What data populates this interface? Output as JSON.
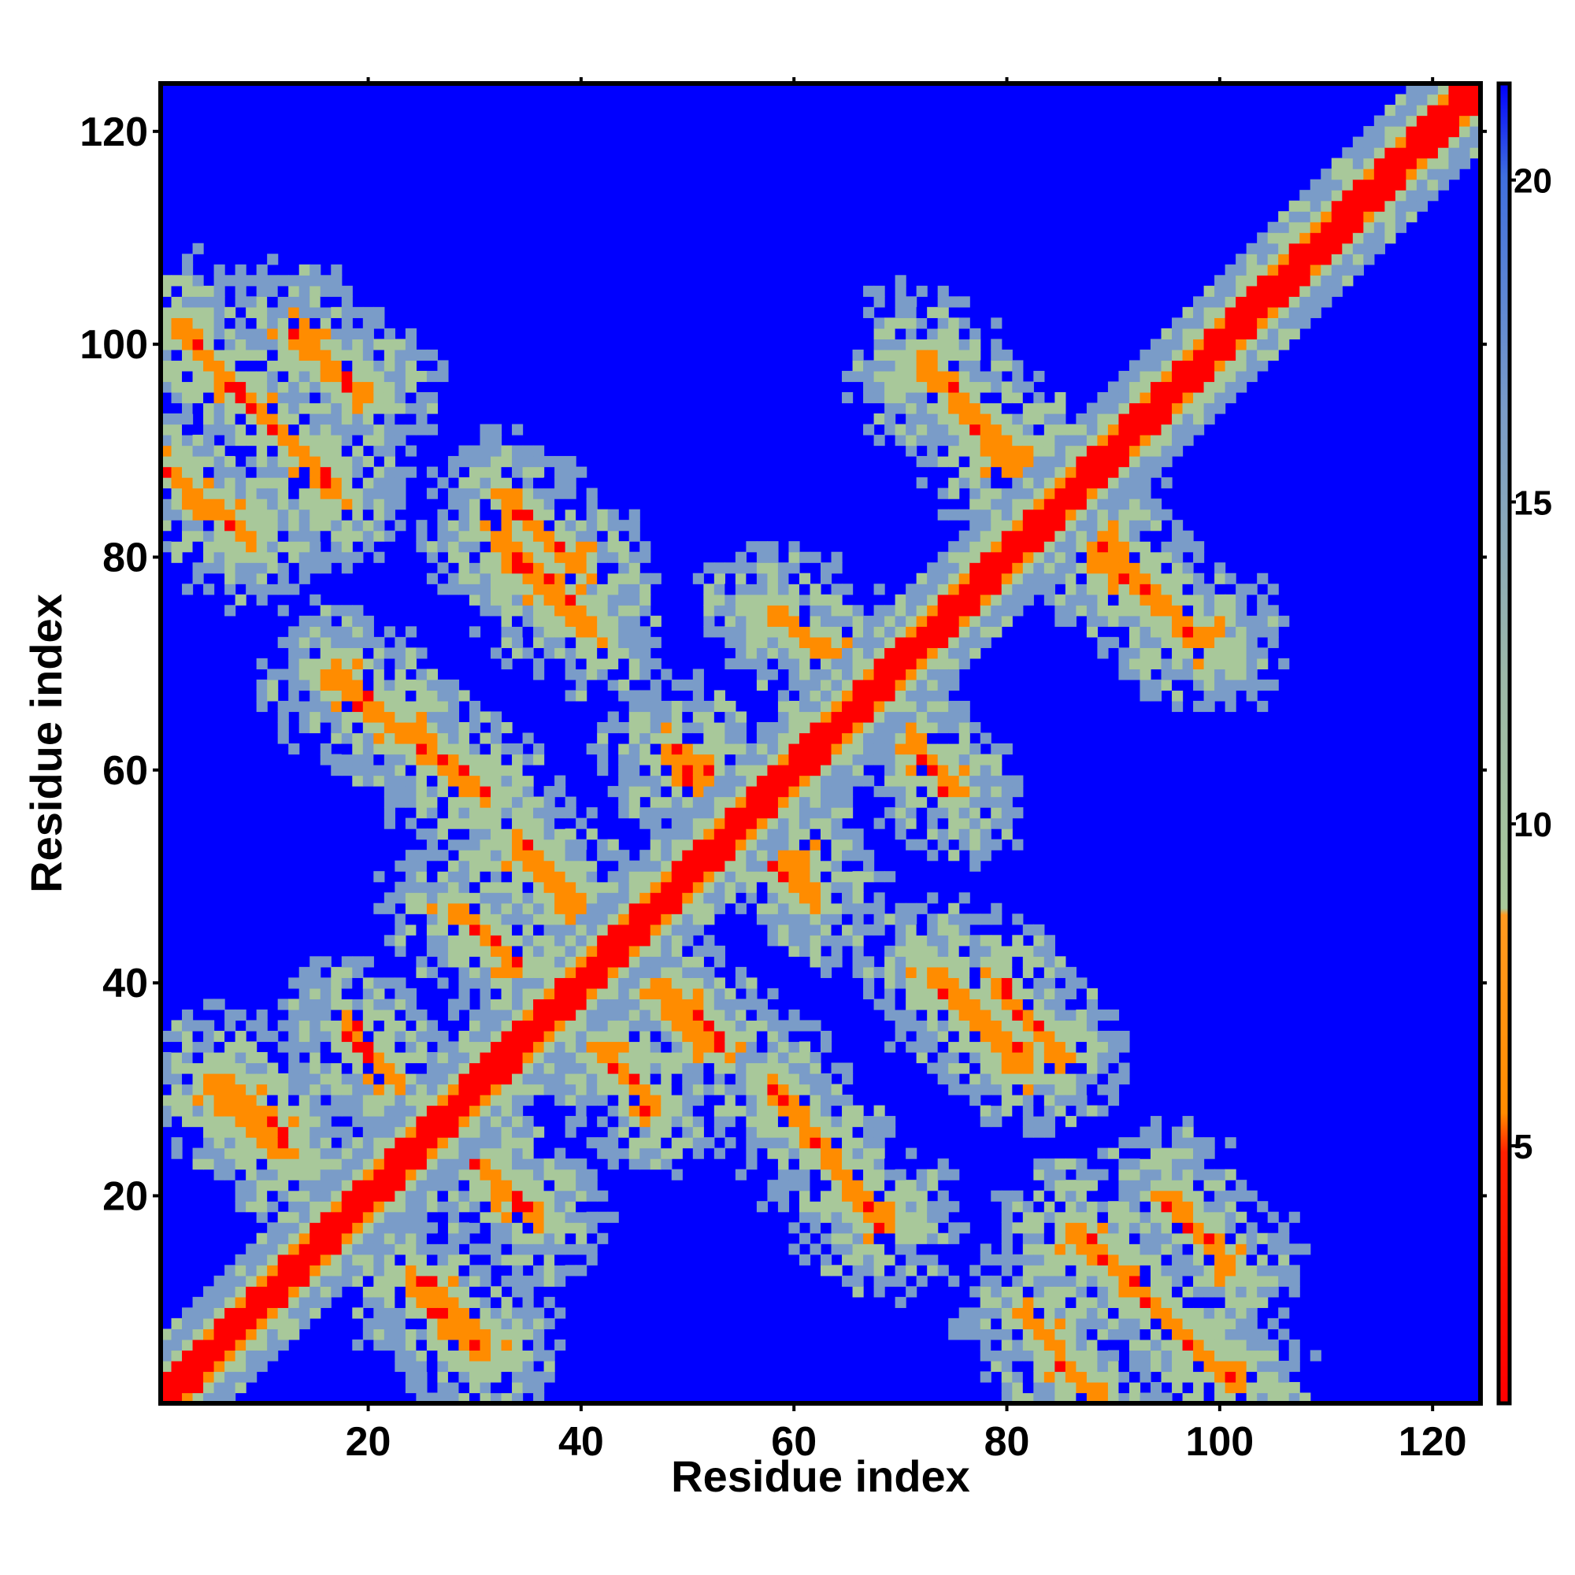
{
  "chart_data": {
    "type": "heatmap",
    "title": "",
    "xlabel": "Residue index",
    "ylabel": "Residue index",
    "n_residues": 124,
    "xlim": [
      0.5,
      124.5
    ],
    "ylim": [
      0.5,
      124.5
    ],
    "xticks": [
      20,
      40,
      60,
      80,
      100,
      120
    ],
    "yticks": [
      20,
      40,
      60,
      80,
      100,
      120
    ],
    "x_tick_labels": [
      "20",
      "40",
      "60",
      "80",
      "100",
      "120"
    ],
    "y_tick_labels": [
      "20",
      "40",
      "60",
      "80",
      "100",
      "120"
    ],
    "colorbar": {
      "range": [
        1,
        21.5
      ],
      "ticks": [
        5,
        10,
        15,
        20
      ],
      "tick_labels": [
        "5",
        "10",
        "15",
        "20"
      ],
      "colors": {
        "very_close": "#ff0000",
        "close": "#ff8c00",
        "near": "#a8c89a",
        "mid": "#7a9cc8",
        "far": "#0000ff"
      }
    },
    "description_values": {
      "diagonal_value": 1,
      "strand_pair_value": 6,
      "background_value": 21
    },
    "strand_pairs": [
      {
        "i_start": 2,
        "i_end": 17,
        "j_start": 86,
        "j_end": 102
      },
      {
        "i_start": 6,
        "i_end": 12,
        "j_start": 25,
        "j_end": 31
      },
      {
        "i_start": 17,
        "i_end": 30,
        "j_start": 58,
        "j_end": 69
      },
      {
        "i_start": 24,
        "i_end": 31,
        "j_start": 5,
        "j_end": 12
      },
      {
        "i_start": 28,
        "i_end": 36,
        "j_start": 18,
        "j_end": 25
      },
      {
        "i_start": 33,
        "i_end": 40,
        "j_start": 79,
        "j_end": 85
      },
      {
        "i_start": 34,
        "i_end": 43,
        "j_start": 44,
        "j_end": 53
      },
      {
        "i_start": 39,
        "i_end": 47,
        "j_start": 28,
        "j_end": 37
      },
      {
        "i_start": 51,
        "i_end": 59,
        "j_start": 52,
        "j_end": 61
      },
      {
        "i_start": 54,
        "i_end": 62,
        "j_start": 48,
        "j_end": 56
      },
      {
        "i_start": 58,
        "i_end": 68,
        "j_start": 17,
        "j_end": 31
      },
      {
        "i_start": 68,
        "i_end": 75,
        "j_start": 58,
        "j_end": 67
      },
      {
        "i_start": 72,
        "i_end": 82,
        "j_start": 86,
        "j_end": 99
      },
      {
        "i_start": 73,
        "i_end": 82,
        "j_start": 32,
        "j_end": 41
      },
      {
        "i_start": 82,
        "i_end": 88,
        "j_start": 1,
        "j_end": 9
      },
      {
        "i_start": 89,
        "i_end": 98,
        "j_start": 72,
        "j_end": 82
      },
      {
        "i_start": 95,
        "i_end": 101,
        "j_start": 13,
        "j_end": 20
      }
    ]
  }
}
